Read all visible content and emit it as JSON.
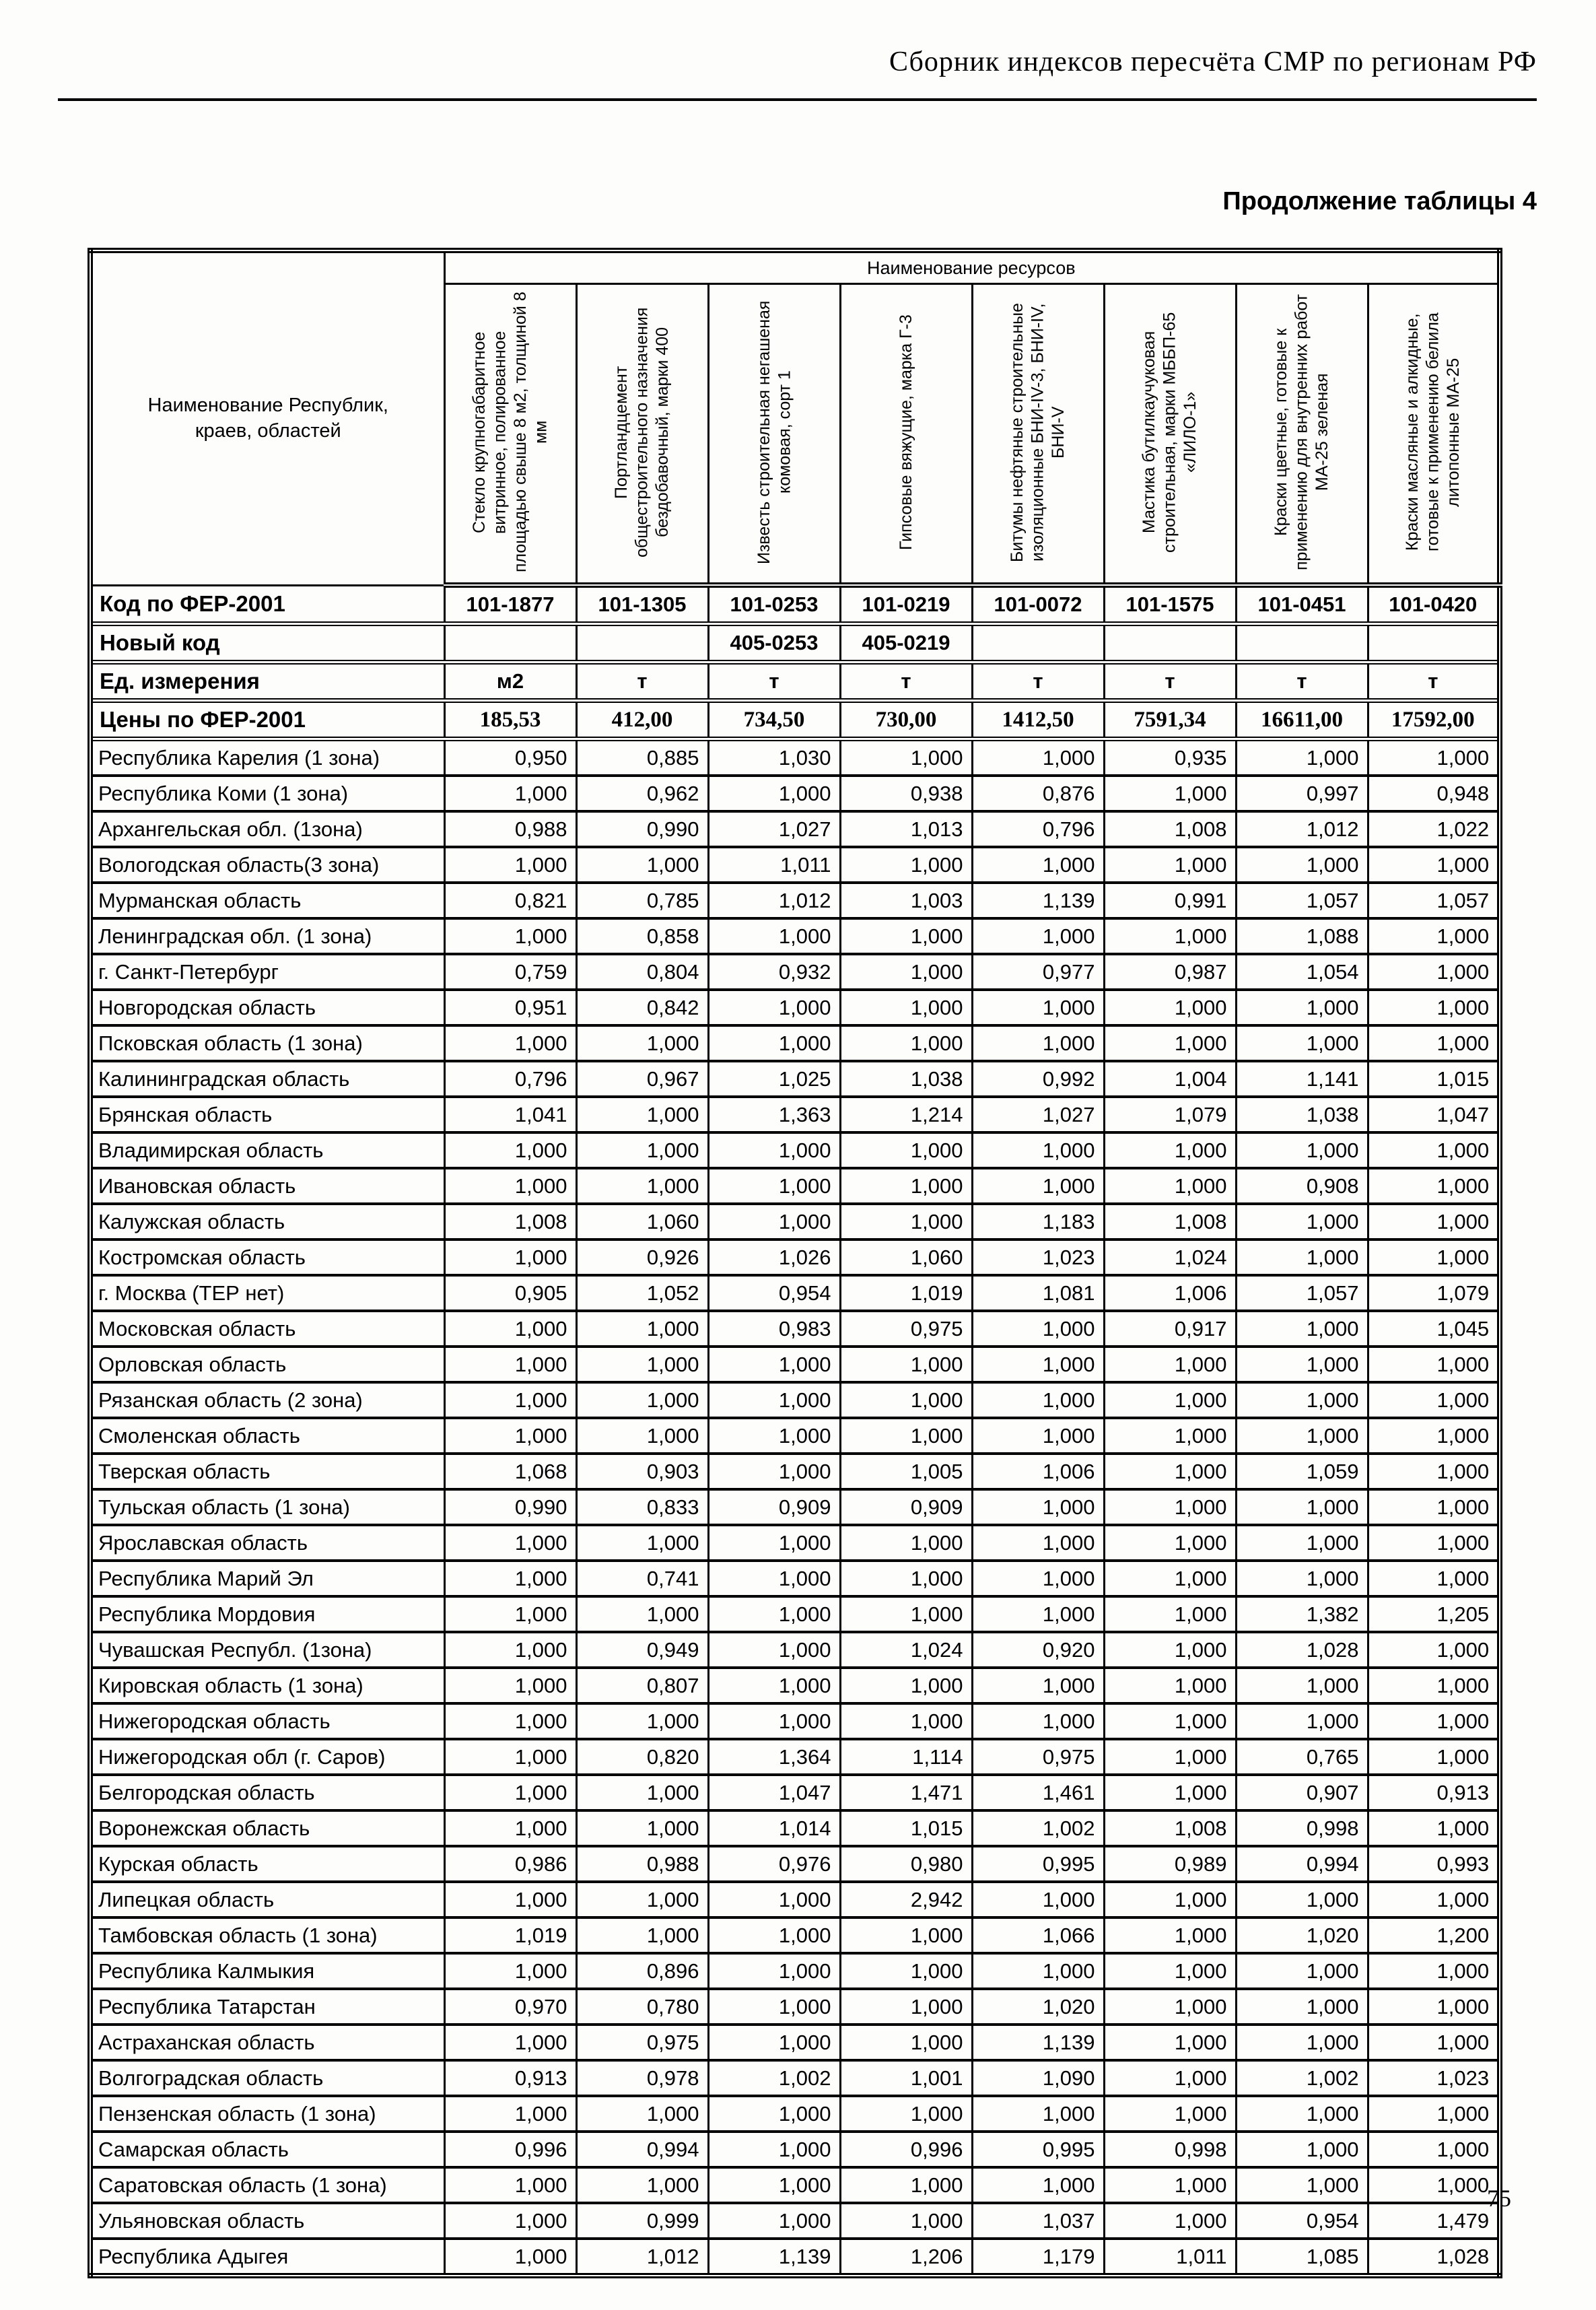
{
  "page": {
    "header_title": "Сборник индексов пересчёта СМР  по регионам РФ",
    "continuation": "Продолжение таблицы 4",
    "page_number": "75"
  },
  "table": {
    "corner_header": "Наименование Республик, краев, областей",
    "resources_header": "Наименование ресурсов",
    "columns": [
      "Стекло крупногабаритное витринное, полированное площадью свыше 8 м2, толщиной 8 мм",
      "Портландцемент общестроительного назначения бездобавочный, марки 400",
      "Известь строительная негашеная комовая, сорт 1",
      "Гипсовые вяжущие, марка Г-3",
      "Битумы нефтяные строительные изоляционные БНИ-IV-3, БНИ-IV, БНИ-V",
      "Мастика бутилкаучуковая строительная, марки МББП-65 «ЛИЛО-1»",
      "Краски цветные, готовые к применению для внутренних работ МА-25 зеленая",
      "Краски масляные и алкидные, готовые к применению белила литопонные МА-25"
    ],
    "meta_rows": [
      {
        "label": "Код по ФЕР-2001",
        "values": [
          "101-1877",
          "101-1305",
          "101-0253",
          "101-0219",
          "101-0072",
          "101-1575",
          "101-0451",
          "101-0420"
        ]
      },
      {
        "label": "Новый код",
        "values": [
          "",
          "",
          "405-0253",
          "405-0219",
          "",
          "",
          "",
          ""
        ]
      },
      {
        "label": "Ед. измерения",
        "values": [
          "м2",
          "т",
          "т",
          "т",
          "т",
          "т",
          "т",
          "т"
        ]
      },
      {
        "label": "Цены по ФЕР-2001",
        "values": [
          "185,53",
          "412,00",
          "734,50",
          "730,00",
          "1412,50",
          "7591,34",
          "16611,00",
          "17592,00"
        ]
      }
    ],
    "rows": [
      {
        "name": "Республика Карелия (1 зона)",
        "values": [
          "0,950",
          "0,885",
          "1,030",
          "1,000",
          "1,000",
          "0,935",
          "1,000",
          "1,000"
        ]
      },
      {
        "name": "Республика Коми (1 зона)",
        "values": [
          "1,000",
          "0,962",
          "1,000",
          "0,938",
          "0,876",
          "1,000",
          "0,997",
          "0,948"
        ]
      },
      {
        "name": "Архангельская обл. (1зона)",
        "values": [
          "0,988",
          "0,990",
          "1,027",
          "1,013",
          "0,796",
          "1,008",
          "1,012",
          "1,022"
        ]
      },
      {
        "name": "Вологодская область(3 зона)",
        "values": [
          "1,000",
          "1,000",
          "1,011",
          "1,000",
          "1,000",
          "1,000",
          "1,000",
          "1,000"
        ]
      },
      {
        "name": "Мурманская область",
        "values": [
          "0,821",
          "0,785",
          "1,012",
          "1,003",
          "1,139",
          "0,991",
          "1,057",
          "1,057"
        ]
      },
      {
        "name": "Ленинградская обл. (1 зона)",
        "values": [
          "1,000",
          "0,858",
          "1,000",
          "1,000",
          "1,000",
          "1,000",
          "1,088",
          "1,000"
        ]
      },
      {
        "name": "г. Санкт-Петербург",
        "values": [
          "0,759",
          "0,804",
          "0,932",
          "1,000",
          "0,977",
          "0,987",
          "1,054",
          "1,000"
        ]
      },
      {
        "name": "Новгородская область",
        "values": [
          "0,951",
          "0,842",
          "1,000",
          "1,000",
          "1,000",
          "1,000",
          "1,000",
          "1,000"
        ]
      },
      {
        "name": "Псковская область (1 зона)",
        "values": [
          "1,000",
          "1,000",
          "1,000",
          "1,000",
          "1,000",
          "1,000",
          "1,000",
          "1,000"
        ]
      },
      {
        "name": "Калининградская область",
        "values": [
          "0,796",
          "0,967",
          "1,025",
          "1,038",
          "0,992",
          "1,004",
          "1,141",
          "1,015"
        ]
      },
      {
        "name": "Брянская область",
        "values": [
          "1,041",
          "1,000",
          "1,363",
          "1,214",
          "1,027",
          "1,079",
          "1,038",
          "1,047"
        ]
      },
      {
        "name": "Владимирская область",
        "values": [
          "1,000",
          "1,000",
          "1,000",
          "1,000",
          "1,000",
          "1,000",
          "1,000",
          "1,000"
        ]
      },
      {
        "name": "Ивановская область",
        "values": [
          "1,000",
          "1,000",
          "1,000",
          "1,000",
          "1,000",
          "1,000",
          "0,908",
          "1,000"
        ]
      },
      {
        "name": "Калужская область",
        "values": [
          "1,008",
          "1,060",
          "1,000",
          "1,000",
          "1,183",
          "1,008",
          "1,000",
          "1,000"
        ]
      },
      {
        "name": "Костромская область",
        "values": [
          "1,000",
          "0,926",
          "1,026",
          "1,060",
          "1,023",
          "1,024",
          "1,000",
          "1,000"
        ]
      },
      {
        "name": "г. Москва (ТЕР нет)",
        "values": [
          "0,905",
          "1,052",
          "0,954",
          "1,019",
          "1,081",
          "1,006",
          "1,057",
          "1,079"
        ]
      },
      {
        "name": "Московская  область",
        "values": [
          "1,000",
          "1,000",
          "0,983",
          "0,975",
          "1,000",
          "0,917",
          "1,000",
          "1,045"
        ]
      },
      {
        "name": "Орловская область",
        "values": [
          "1,000",
          "1,000",
          "1,000",
          "1,000",
          "1,000",
          "1,000",
          "1,000",
          "1,000"
        ]
      },
      {
        "name": "Рязанская область (2 зона)",
        "values": [
          "1,000",
          "1,000",
          "1,000",
          "1,000",
          "1,000",
          "1,000",
          "1,000",
          "1,000"
        ]
      },
      {
        "name": "Смоленская область",
        "values": [
          "1,000",
          "1,000",
          "1,000",
          "1,000",
          "1,000",
          "1,000",
          "1,000",
          "1,000"
        ]
      },
      {
        "name": "Тверская область",
        "values": [
          "1,068",
          "0,903",
          "1,000",
          "1,005",
          "1,006",
          "1,000",
          "1,059",
          "1,000"
        ]
      },
      {
        "name": "Тульская область (1 зона)",
        "values": [
          "0,990",
          "0,833",
          "0,909",
          "0,909",
          "1,000",
          "1,000",
          "1,000",
          "1,000"
        ]
      },
      {
        "name": "Ярославская область",
        "values": [
          "1,000",
          "1,000",
          "1,000",
          "1,000",
          "1,000",
          "1,000",
          "1,000",
          "1,000"
        ]
      },
      {
        "name": "Республика Марий Эл",
        "values": [
          "1,000",
          "0,741",
          "1,000",
          "1,000",
          "1,000",
          "1,000",
          "1,000",
          "1,000"
        ]
      },
      {
        "name": "Республика Мордовия",
        "values": [
          "1,000",
          "1,000",
          "1,000",
          "1,000",
          "1,000",
          "1,000",
          "1,382",
          "1,205"
        ]
      },
      {
        "name": "Чувашская Республ. (1зона)",
        "values": [
          "1,000",
          "0,949",
          "1,000",
          "1,024",
          "0,920",
          "1,000",
          "1,028",
          "1,000"
        ]
      },
      {
        "name": "Кировская область (1 зона)",
        "values": [
          "1,000",
          "0,807",
          "1,000",
          "1,000",
          "1,000",
          "1,000",
          "1,000",
          "1,000"
        ]
      },
      {
        "name": "Нижегородская область",
        "values": [
          "1,000",
          "1,000",
          "1,000",
          "1,000",
          "1,000",
          "1,000",
          "1,000",
          "1,000"
        ]
      },
      {
        "name": "Нижегородская обл (г. Саров)",
        "values": [
          "1,000",
          "0,820",
          "1,364",
          "1,114",
          "0,975",
          "1,000",
          "0,765",
          "1,000"
        ]
      },
      {
        "name": "Белгородская область",
        "values": [
          "1,000",
          "1,000",
          "1,047",
          "1,471",
          "1,461",
          "1,000",
          "0,907",
          "0,913"
        ]
      },
      {
        "name": "Воронежская область",
        "values": [
          "1,000",
          "1,000",
          "1,014",
          "1,015",
          "1,002",
          "1,008",
          "0,998",
          "1,000"
        ]
      },
      {
        "name": "Курская область",
        "values": [
          "0,986",
          "0,988",
          "0,976",
          "0,980",
          "0,995",
          "0,989",
          "0,994",
          "0,993"
        ]
      },
      {
        "name": "Липецкая область",
        "values": [
          "1,000",
          "1,000",
          "1,000",
          "2,942",
          "1,000",
          "1,000",
          "1,000",
          "1,000"
        ]
      },
      {
        "name": "Тамбовская область (1 зона)",
        "values": [
          "1,019",
          "1,000",
          "1,000",
          "1,000",
          "1,066",
          "1,000",
          "1,020",
          "1,200"
        ]
      },
      {
        "name": "Республика Калмыкия",
        "values": [
          "1,000",
          "0,896",
          "1,000",
          "1,000",
          "1,000",
          "1,000",
          "1,000",
          "1,000"
        ]
      },
      {
        "name": "Республика Татарстан",
        "values": [
          "0,970",
          "0,780",
          "1,000",
          "1,000",
          "1,020",
          "1,000",
          "1,000",
          "1,000"
        ]
      },
      {
        "name": "Астраханская область",
        "values": [
          "1,000",
          "0,975",
          "1,000",
          "1,000",
          "1,139",
          "1,000",
          "1,000",
          "1,000"
        ]
      },
      {
        "name": "Волгоградская область",
        "values": [
          "0,913",
          "0,978",
          "1,002",
          "1,001",
          "1,090",
          "1,000",
          "1,002",
          "1,023"
        ]
      },
      {
        "name": "Пензенская область (1 зона)",
        "values": [
          "1,000",
          "1,000",
          "1,000",
          "1,000",
          "1,000",
          "1,000",
          "1,000",
          "1,000"
        ]
      },
      {
        "name": "Самарская область",
        "values": [
          "0,996",
          "0,994",
          "1,000",
          "0,996",
          "0,995",
          "0,998",
          "1,000",
          "1,000"
        ]
      },
      {
        "name": "Саратовская область (1 зона)",
        "values": [
          "1,000",
          "1,000",
          "1,000",
          "1,000",
          "1,000",
          "1,000",
          "1,000",
          "1,000"
        ]
      },
      {
        "name": "Ульяновская область",
        "values": [
          "1,000",
          "0,999",
          "1,000",
          "1,000",
          "1,037",
          "1,000",
          "0,954",
          "1,479"
        ]
      },
      {
        "name": "Республика Адыгея",
        "values": [
          "1,000",
          "1,012",
          "1,139",
          "1,206",
          "1,179",
          "1,011",
          "1,085",
          "1,028"
        ]
      }
    ]
  }
}
